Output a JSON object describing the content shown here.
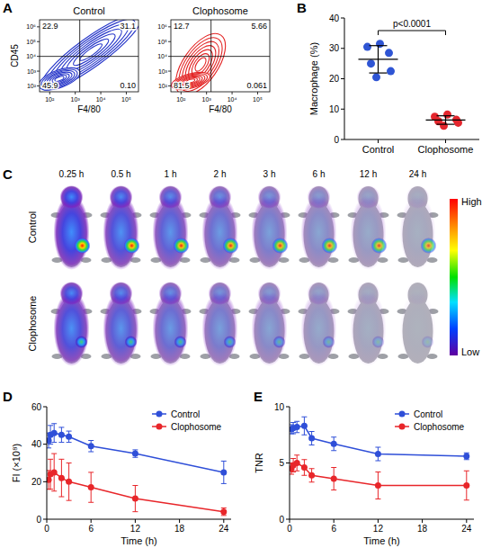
{
  "chart_data": [
    {
      "type": "flow_cytometry",
      "panel_label": "A",
      "title": "Control",
      "x_label": "F4/80",
      "y_label": "CD45",
      "log": true,
      "xlim": [
        40,
        300000
      ],
      "ylim": [
        40,
        3000000
      ],
      "xticks": [
        {
          "value": 100,
          "label": "10²"
        },
        {
          "value": 1000,
          "label": "10³"
        },
        {
          "value": 10000,
          "label": "10⁴"
        },
        {
          "value": 100000,
          "label": "10⁵"
        }
      ],
      "yticks": [
        {
          "value": 100,
          "label": "10²"
        },
        {
          "value": 1000,
          "label": "10³"
        },
        {
          "value": 10000,
          "label": "10⁴"
        },
        {
          "value": 100000,
          "label": "10⁵"
        },
        {
          "value": 1000000,
          "label": "10⁶"
        }
      ],
      "gates": {
        "x": 1500,
        "y": 10000
      },
      "quadrants": {
        "values": [
          22.9,
          31.1,
          45.9,
          0.1
        ],
        "value_labels": [
          "22.9",
          "31.1",
          "45.9",
          "0.10"
        ]
      },
      "color": "#2636c9"
    },
    {
      "type": "flow_cytometry",
      "title": "Clophosome",
      "x_label": "F4/80",
      "log": true,
      "xlim": [
        40,
        300000
      ],
      "ylim": [
        40,
        3000000
      ],
      "xticks": [
        {
          "value": 100,
          "label": "10²"
        },
        {
          "value": 1000,
          "label": "10³"
        },
        {
          "value": 10000,
          "label": "10⁴"
        },
        {
          "value": 100000,
          "label": "10⁵"
        }
      ],
      "yticks": [
        {
          "value": 100,
          "label": "10²"
        },
        {
          "value": 1000,
          "label": "10³"
        },
        {
          "value": 10000,
          "label": "10⁴"
        },
        {
          "value": 100000,
          "label": "10⁵"
        },
        {
          "value": 1000000,
          "label": "10⁶"
        }
      ],
      "gates": {
        "x": 1500,
        "y": 10000
      },
      "quadrants": {
        "values": [
          12.7,
          5.66,
          81.5,
          0.061
        ],
        "value_labels": [
          "12.7",
          "5.66",
          "81.5",
          "0.061"
        ]
      },
      "color": "#e32424"
    },
    {
      "type": "dot_plot",
      "panel_label": "B",
      "y_label": "Macrophage (%)",
      "categories": [
        "Control",
        "Clophosome"
      ],
      "colors": [
        "#2f55d4",
        "#e4262d"
      ],
      "points": [
        [
          31.5,
          30.5,
          28.5,
          25.0,
          22.5,
          20.5
        ],
        [
          8.2,
          7.5,
          6.5,
          6.0,
          5.5,
          4.5
        ]
      ],
      "means": [
        26.4,
        6.4
      ],
      "errors": [
        4.5,
        1.4
      ],
      "ylim": [
        0,
        40
      ],
      "yticks": [
        0,
        10,
        20,
        30,
        40
      ],
      "annotation": "p<0.0001"
    },
    {
      "type": "image_grid",
      "panel_label": "C",
      "columns": [
        "0.25 h",
        "0.5 h",
        "1 h",
        "2 h",
        "3 h",
        "6 h",
        "12 h",
        "24 h"
      ],
      "rows": [
        "Control",
        "Clophosome"
      ],
      "colorbar_labels": [
        "High",
        "Low"
      ]
    },
    {
      "type": "line",
      "panel_label": "D",
      "x_label": "Time (h)",
      "y_label": "FI (×10⁸)",
      "x": [
        0.25,
        0.5,
        1,
        2,
        3,
        6,
        12,
        24
      ],
      "xlim": [
        0,
        25
      ],
      "xticks": [
        0,
        6,
        12,
        18,
        24
      ],
      "ylim": [
        0,
        60
      ],
      "yticks": [
        0,
        20,
        40,
        60
      ],
      "legend": "top-right",
      "marker": "circle",
      "series": [
        {
          "name": "Control",
          "color": "#2f4fd8",
          "values": [
            42,
            45,
            46,
            45,
            44,
            39,
            35,
            25
          ],
          "errors": [
            4,
            5,
            5,
            4,
            3,
            3,
            2,
            6
          ]
        },
        {
          "name": "Clophosome",
          "color": "#e8262a",
          "values": [
            21,
            24,
            25,
            22,
            20,
            17,
            11,
            4
          ],
          "errors": [
            5,
            8,
            10,
            10,
            10,
            8,
            7,
            2
          ]
        }
      ]
    },
    {
      "type": "line",
      "panel_label": "E",
      "x_label": "Time (h)",
      "y_label": "TNR",
      "x": [
        0.25,
        0.5,
        1,
        2,
        3,
        6,
        12,
        24
      ],
      "xlim": [
        0,
        25
      ],
      "xticks": [
        0,
        6,
        12,
        18,
        24
      ],
      "ylim": [
        0,
        10
      ],
      "yticks": [
        0,
        5,
        10
      ],
      "legend": "top-right",
      "marker": "circle",
      "series": [
        {
          "name": "Control",
          "color": "#2f4fd8",
          "values": [
            8.0,
            8.1,
            8.2,
            8.3,
            7.2,
            6.7,
            5.8,
            5.6
          ],
          "errors": [
            0.4,
            0.5,
            0.5,
            0.8,
            0.6,
            0.6,
            0.6,
            0.3
          ]
        },
        {
          "name": "Clophosome",
          "color": "#e8262a",
          "values": [
            4.5,
            4.8,
            5.0,
            4.6,
            3.9,
            3.6,
            3.0,
            3.0
          ],
          "errors": [
            0.5,
            0.6,
            0.7,
            0.7,
            0.6,
            1.0,
            1.2,
            1.3
          ]
        }
      ]
    }
  ]
}
